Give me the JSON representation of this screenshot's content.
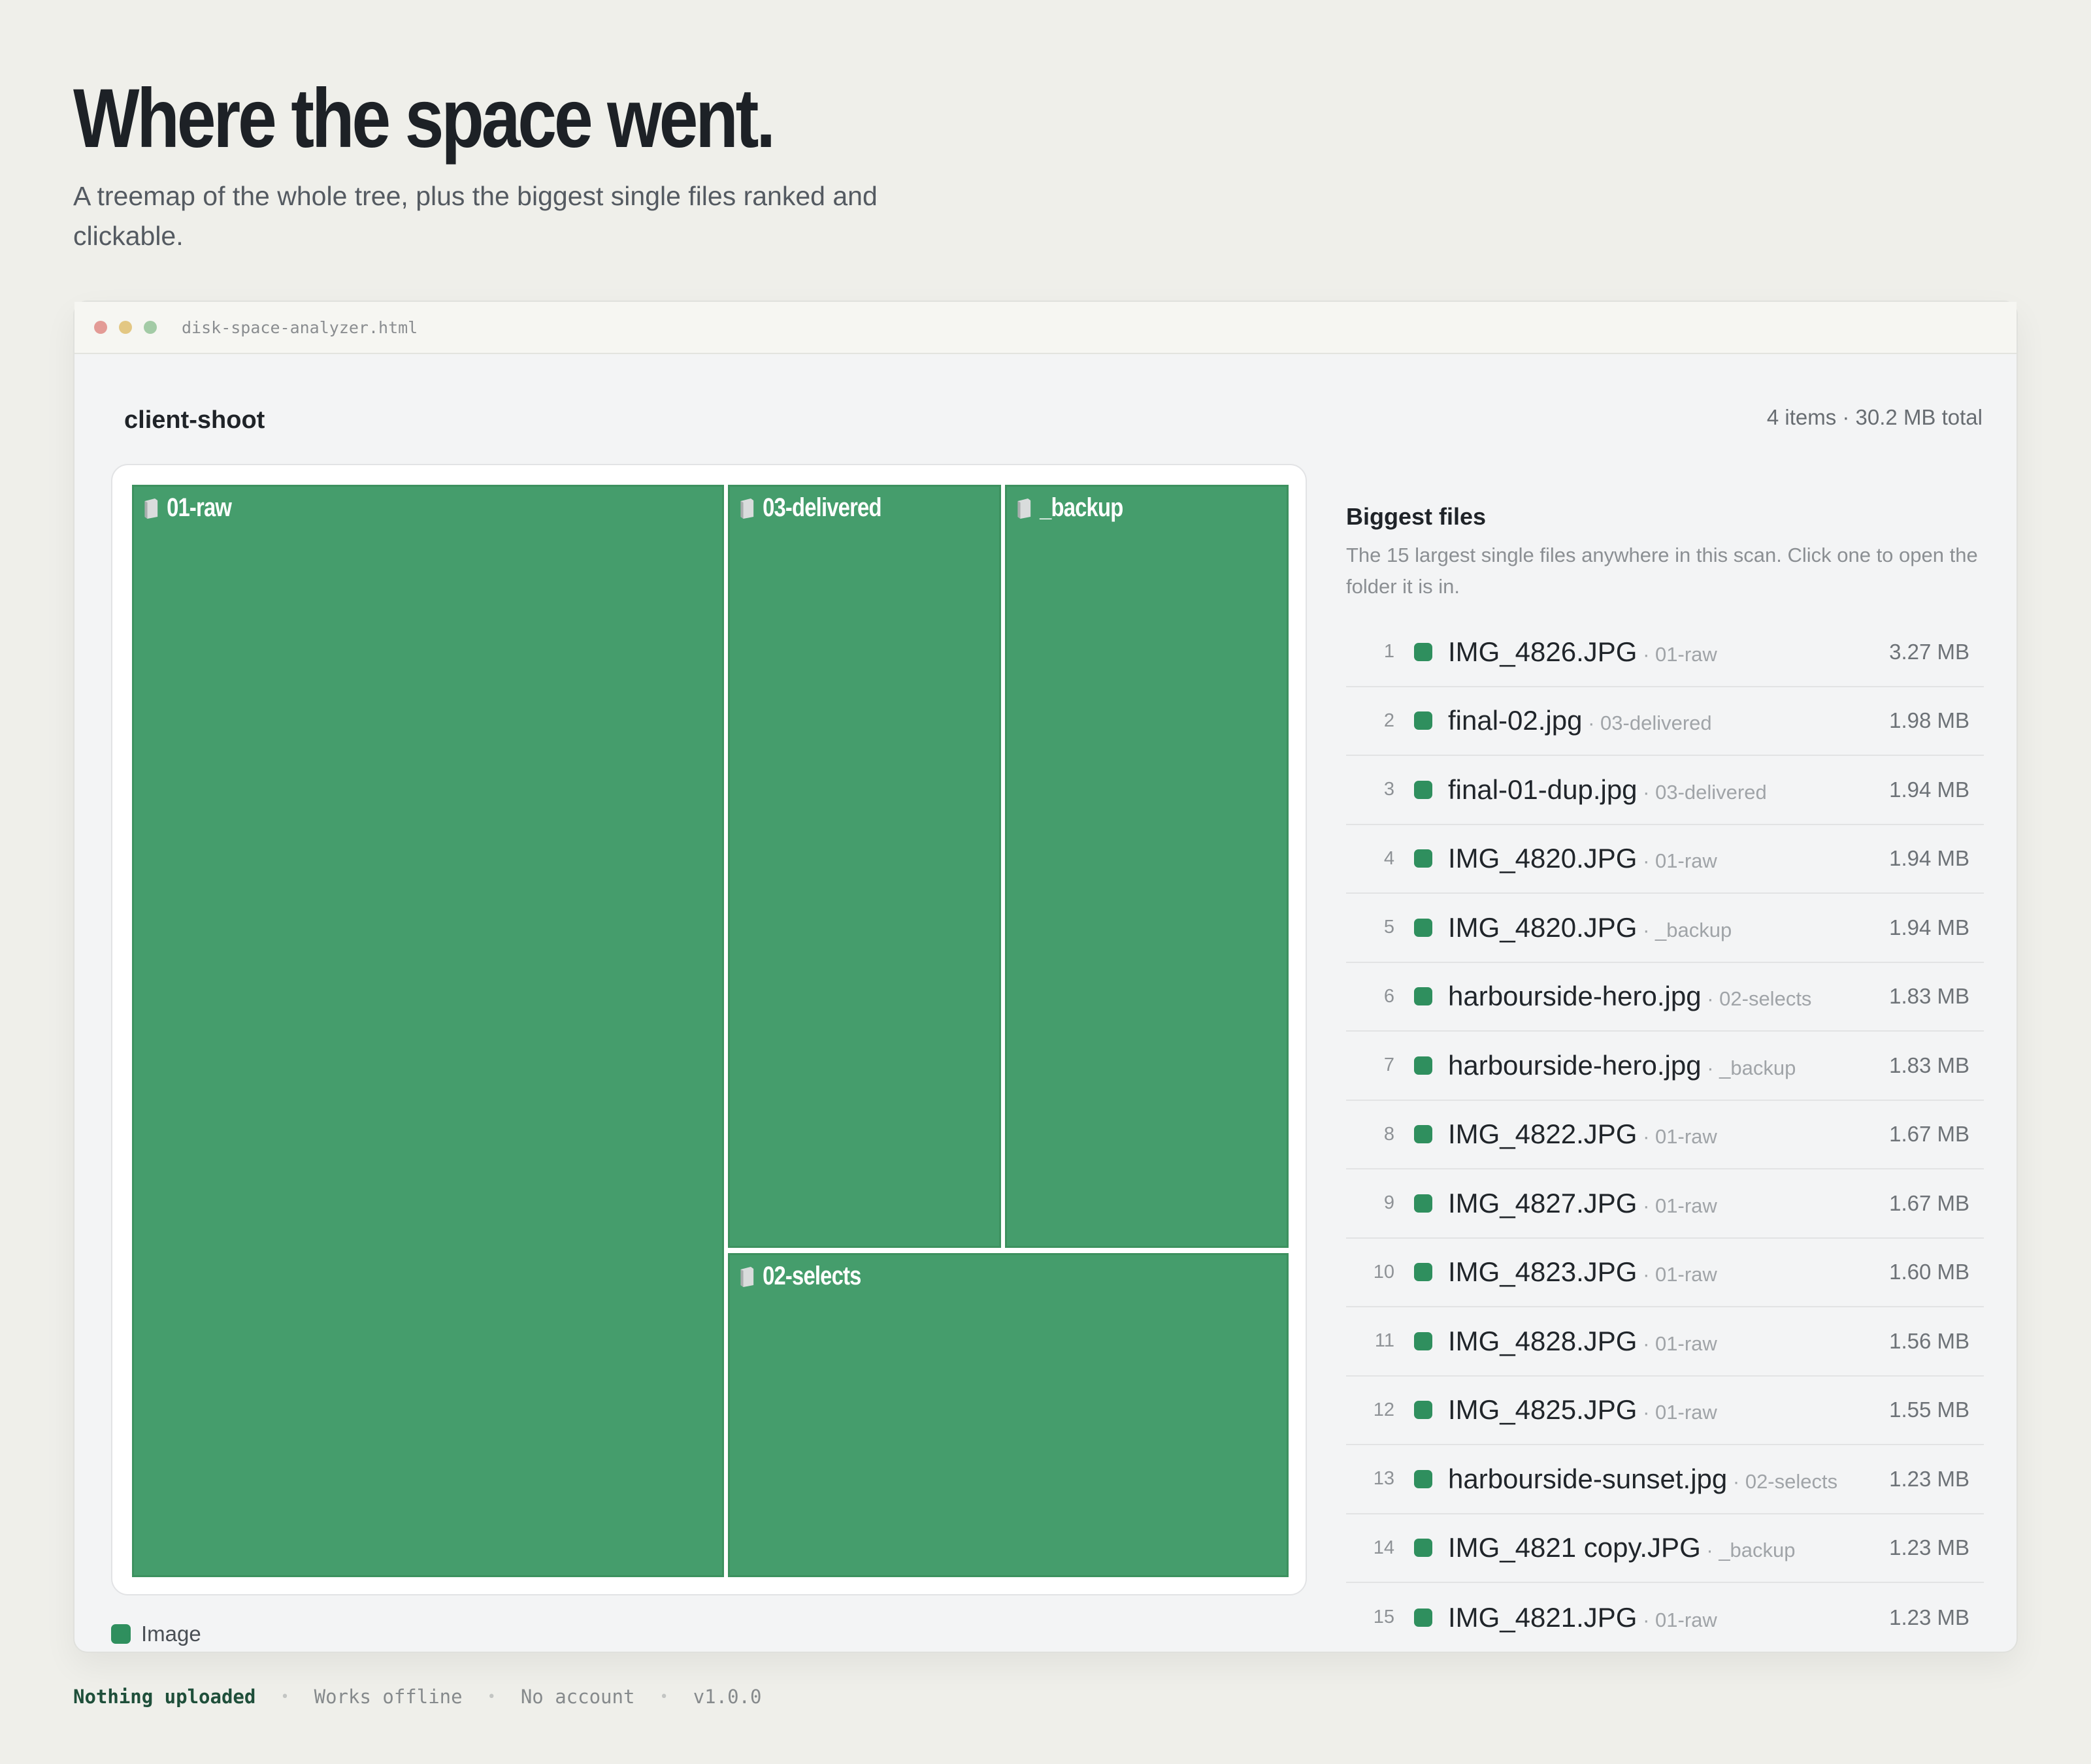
{
  "hero": {
    "title": "Where the space went.",
    "subtitle": "A treemap of the whole tree, plus the biggest single files ranked and clickable."
  },
  "window": {
    "filename": "disk-space-analyzer.html"
  },
  "scan": {
    "folder": "client-shoot",
    "summary": "4 items · 30.2 MB total"
  },
  "treemap": {
    "tiles": [
      {
        "label": "01-raw",
        "icon": "folder-icon"
      },
      {
        "label": "03-delivered",
        "icon": "folder-icon"
      },
      {
        "label": "_backup",
        "icon": "folder-icon"
      },
      {
        "label": "02-selects",
        "icon": "folder-icon"
      }
    ],
    "tile_color": "#459d6c"
  },
  "legend": {
    "items": [
      {
        "label": "Image",
        "color": "#2f8f5e"
      }
    ]
  },
  "biggest_files": {
    "heading": "Biggest files",
    "description": "The 15 largest single files anywhere in this scan. Click one to open the folder it is in.",
    "separator": " · ",
    "rows": [
      {
        "rank": "1",
        "name": "IMG_4826.JPG",
        "folder": "01-raw",
        "size": "3.27 MB"
      },
      {
        "rank": "2",
        "name": "final-02.jpg",
        "folder": "03-delivered",
        "size": "1.98 MB"
      },
      {
        "rank": "3",
        "name": "final-01-dup.jpg",
        "folder": "03-delivered",
        "size": "1.94 MB"
      },
      {
        "rank": "4",
        "name": "IMG_4820.JPG",
        "folder": "01-raw",
        "size": "1.94 MB"
      },
      {
        "rank": "5",
        "name": "IMG_4820.JPG",
        "folder": "_backup",
        "size": "1.94 MB"
      },
      {
        "rank": "6",
        "name": "harbourside-hero.jpg",
        "folder": "02-selects",
        "size": "1.83 MB"
      },
      {
        "rank": "7",
        "name": "harbourside-hero.jpg",
        "folder": "_backup",
        "size": "1.83 MB"
      },
      {
        "rank": "8",
        "name": "IMG_4822.JPG",
        "folder": "01-raw",
        "size": "1.67 MB"
      },
      {
        "rank": "9",
        "name": "IMG_4827.JPG",
        "folder": "01-raw",
        "size": "1.67 MB"
      },
      {
        "rank": "10",
        "name": "IMG_4823.JPG",
        "folder": "01-raw",
        "size": "1.60 MB"
      },
      {
        "rank": "11",
        "name": "IMG_4828.JPG",
        "folder": "01-raw",
        "size": "1.56 MB"
      },
      {
        "rank": "12",
        "name": "IMG_4825.JPG",
        "folder": "01-raw",
        "size": "1.55 MB"
      },
      {
        "rank": "13",
        "name": "harbourside-sunset.jpg",
        "folder": "02-selects",
        "size": "1.23 MB"
      },
      {
        "rank": "14",
        "name": "IMG_4821 copy.JPG",
        "folder": "_backup",
        "size": "1.23 MB"
      },
      {
        "rank": "15",
        "name": "IMG_4821.JPG",
        "folder": "01-raw",
        "size": "1.23 MB"
      }
    ]
  },
  "footer": {
    "items": [
      "Nothing uploaded",
      "Works offline",
      "No account",
      "v1.0.0"
    ]
  }
}
